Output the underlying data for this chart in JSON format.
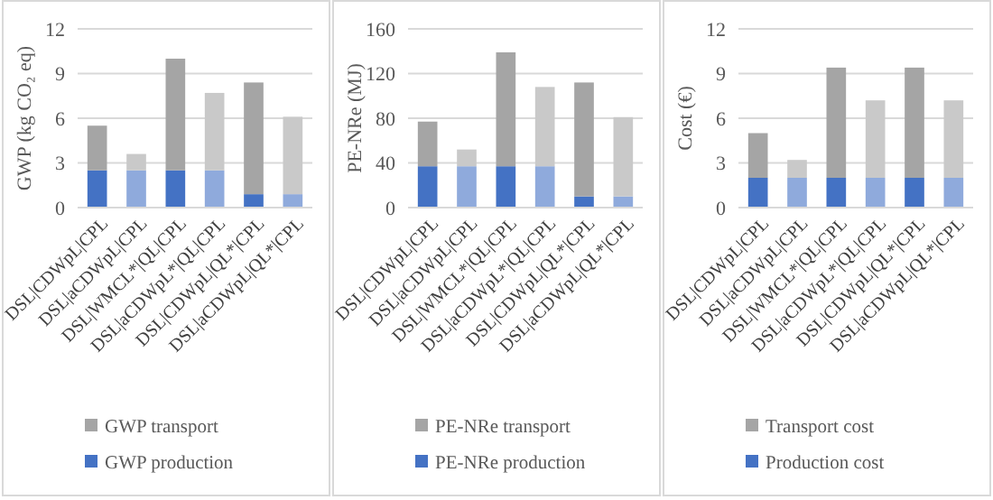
{
  "chart_data": [
    {
      "type": "bar",
      "stacked": true,
      "ylabel": "GWP (kg CO₂ eq)",
      "categories": [
        "DSL|CDWpL|CPL",
        "DSL|aCDWpL|CPL",
        "DSL|WMCL*|QL|CPL",
        "DSL|aCDWpL*|QL|CPL",
        "DSL|CDWpL|QL*|CPL",
        "DSL|aCDWpL|QL*|CPL"
      ],
      "ylim": [
        0,
        12
      ],
      "yticks": [
        0,
        3,
        6,
        9,
        12
      ],
      "grid": "y",
      "legend": "bottom",
      "series": [
        {
          "name": "GWP production",
          "color": "#4472c4",
          "colors": [
            "#4472c4",
            "#8faadc",
            "#4472c4",
            "#8faadc",
            "#4472c4",
            "#8faadc"
          ],
          "values": [
            2.5,
            2.5,
            2.5,
            2.5,
            0.9,
            0.9
          ]
        },
        {
          "name": "GWP transport",
          "color": "#a5a5a5",
          "colors": [
            "#a5a5a5",
            "#c9c9c9",
            "#a5a5a5",
            "#c9c9c9",
            "#a5a5a5",
            "#c9c9c9"
          ],
          "values": [
            3.0,
            1.1,
            7.5,
            5.2,
            7.5,
            5.2
          ]
        }
      ]
    },
    {
      "type": "bar",
      "stacked": true,
      "ylabel": "PE-NRe (MJ)",
      "categories": [
        "DSL|CDWpL|CPL",
        "DSL|aCDWpL|CPL",
        "DSL|WMCL*|QL|CPL",
        "DSL|aCDWpL*|QL|CPL",
        "DSL|CDWpL|QL*|CPL",
        "DSL|aCDWpL|QL*|CPL"
      ],
      "ylim": [
        0,
        160
      ],
      "yticks": [
        0,
        40,
        80,
        120,
        160
      ],
      "grid": "y",
      "legend": "bottom",
      "series": [
        {
          "name": "PE-NRe production",
          "color": "#4472c4",
          "colors": [
            "#4472c4",
            "#8faadc",
            "#4472c4",
            "#8faadc",
            "#4472c4",
            "#8faadc"
          ],
          "values": [
            37,
            37,
            37,
            37,
            10,
            10
          ]
        },
        {
          "name": "PE-NRe transport",
          "color": "#a5a5a5",
          "colors": [
            "#a5a5a5",
            "#c9c9c9",
            "#a5a5a5",
            "#c9c9c9",
            "#a5a5a5",
            "#c9c9c9"
          ],
          "values": [
            40,
            15,
            102,
            71,
            102,
            71
          ]
        }
      ]
    },
    {
      "type": "bar",
      "stacked": true,
      "ylabel": "Cost (€)",
      "categories": [
        "DSL|CDWpL|CPL",
        "DSL|aCDWpL|CPL",
        "DSL|WMCL*|QL|CPL",
        "DSL|aCDWpL*|QL|CPL",
        "DSL|CDWpL|QL*|CPL",
        "DSL|aCDWpL|QL*|CPL"
      ],
      "ylim": [
        0,
        12
      ],
      "yticks": [
        0,
        3,
        6,
        9,
        12
      ],
      "grid": "y",
      "legend": "bottom",
      "series": [
        {
          "name": "Production cost",
          "color": "#4472c4",
          "colors": [
            "#4472c4",
            "#8faadc",
            "#4472c4",
            "#8faadc",
            "#4472c4",
            "#8faadc"
          ],
          "values": [
            2,
            2,
            2,
            2,
            2,
            2
          ]
        },
        {
          "name": "Transport cost",
          "color": "#a5a5a5",
          "colors": [
            "#a5a5a5",
            "#c9c9c9",
            "#a5a5a5",
            "#c9c9c9",
            "#a5a5a5",
            "#c9c9c9"
          ],
          "values": [
            3,
            1.2,
            7.4,
            5.2,
            7.4,
            5.2
          ]
        }
      ]
    }
  ]
}
